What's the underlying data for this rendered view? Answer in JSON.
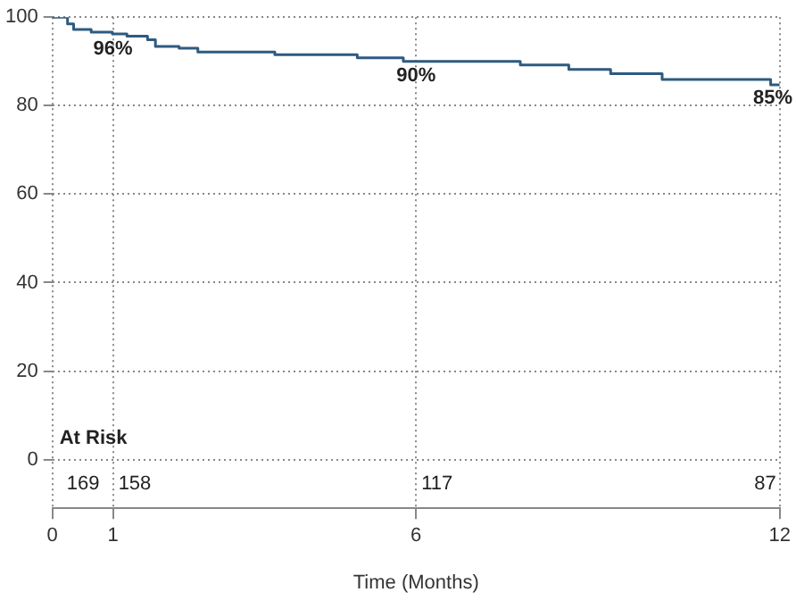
{
  "chart_data": {
    "type": "step",
    "xlabel": "Time (Months)",
    "x": [
      0,
      0.2,
      0.25,
      0.35,
      0.64,
      0.99,
      1.23,
      1.57,
      1.7,
      2.09,
      2.4,
      3.67,
      5.03,
      5.79,
      7.72,
      8.52,
      9.21,
      10.06,
      11.85,
      12
    ],
    "series": [
      {
        "color": "#2e5a80",
        "values": [
          100,
          100,
          98.5,
          97.2,
          96.6,
          96.2,
          95.7,
          94.9,
          93.4,
          93,
          92.1,
          91.5,
          90.8,
          90,
          89.2,
          88.2,
          87.2,
          85.9,
          84.7,
          84.7
        ]
      }
    ],
    "xlim": [
      0,
      12
    ],
    "xticks": [
      0,
      1,
      6,
      12
    ],
    "ylim": [
      -11,
      100
    ],
    "yticks": [
      0,
      20,
      40,
      60,
      80,
      100
    ],
    "grid": true,
    "legend": false,
    "marker": "none",
    "line_style": "solid",
    "annotations": [
      {
        "text": "96%",
        "x": 1,
        "y": 96
      },
      {
        "text": "90%",
        "x": 6,
        "y": 90
      },
      {
        "text": "85%",
        "x": 12,
        "y": 85
      },
      "At Risk",
      "169",
      "158",
      "117",
      "87"
    ]
  }
}
